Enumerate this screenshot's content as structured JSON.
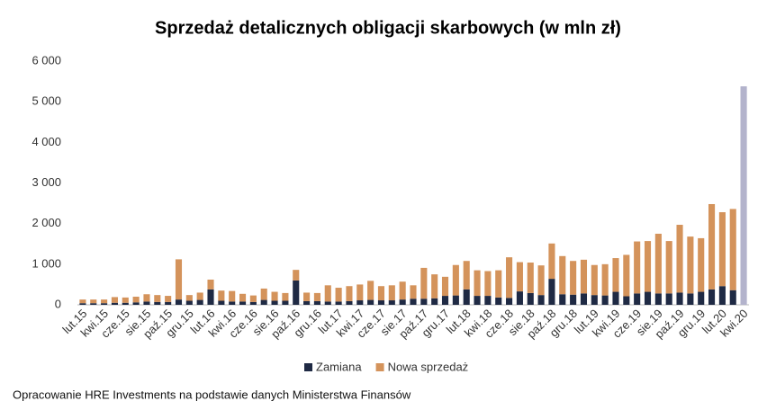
{
  "chart_data": {
    "type": "stacked_bar",
    "title": "Sprzedaż detalicznych obligacji skarbowych (w mln zł)",
    "source": "Opracowanie HRE Investments na podstawie danych Ministerstwa Finansów",
    "categories": [
      "lut.15",
      null,
      "kwi.15",
      null,
      "cze.15",
      null,
      "sie.15",
      null,
      "paź.15",
      null,
      "gru.15",
      null,
      "lut.16",
      null,
      "kwi.16",
      null,
      "cze.16",
      null,
      "sie.16",
      null,
      "paź.16",
      null,
      "gru.16",
      null,
      "lut.17",
      null,
      "kwi.17",
      null,
      "cze.17",
      null,
      "sie.17",
      null,
      "paź.17",
      null,
      "gru.17",
      null,
      "lut.18",
      null,
      "kwi.18",
      null,
      "cze.18",
      null,
      "sie.18",
      null,
      "paź.18",
      null,
      "gru.18",
      null,
      "lut.19",
      null,
      "kwi.19",
      null,
      "cze.19",
      null,
      "sie.19",
      null,
      "paź.19",
      null,
      "gru.19",
      null,
      "lut.20",
      null,
      "kwi.20"
    ],
    "series": [
      {
        "name": "Zamiana",
        "color": "#1f2a44",
        "values": [
          40,
          40,
          40,
          50,
          50,
          60,
          80,
          70,
          70,
          130,
          100,
          120,
          380,
          100,
          80,
          80,
          70,
          120,
          100,
          100,
          600,
          90,
          90,
          80,
          80,
          90,
          110,
          120,
          110,
          110,
          130,
          150,
          150,
          160,
          220,
          230,
          380,
          220,
          220,
          180,
          170,
          330,
          290,
          240,
          640,
          260,
          250,
          280,
          240,
          230,
          320,
          210,
          280,
          320,
          280,
          280,
          300,
          280,
          320,
          380,
          460,
          360,
          0
        ]
      },
      {
        "name": "Nowa sprzedaż",
        "color": "#d4935b",
        "colors": [
          "#d4935b",
          "#d4935b",
          "#d4935b",
          "#d4935b",
          "#d4935b",
          "#d4935b",
          "#d4935b",
          "#d4935b",
          "#d4935b",
          "#d4935b",
          "#d4935b",
          "#d4935b",
          "#d4935b",
          "#d4935b",
          "#d4935b",
          "#d4935b",
          "#d4935b",
          "#d4935b",
          "#d4935b",
          "#d4935b",
          "#d4935b",
          "#d4935b",
          "#d4935b",
          "#d4935b",
          "#d4935b",
          "#d4935b",
          "#d4935b",
          "#d4935b",
          "#d4935b",
          "#d4935b",
          "#d4935b",
          "#d4935b",
          "#d4935b",
          "#d4935b",
          "#d4935b",
          "#d4935b",
          "#d4935b",
          "#d4935b",
          "#d4935b",
          "#d4935b",
          "#d4935b",
          "#d4935b",
          "#d4935b",
          "#d4935b",
          "#d4935b",
          "#d4935b",
          "#d4935b",
          "#d4935b",
          "#d4935b",
          "#d4935b",
          "#d4935b",
          "#d4935b",
          "#d4935b",
          "#d4935b",
          "#d4935b",
          "#d4935b",
          "#d4935b",
          "#d4935b",
          "#d4935b",
          "#d4935b",
          "#d4935b",
          "#d4935b",
          "#b3b3cc"
        ],
        "values": [
          90,
          90,
          90,
          140,
          130,
          140,
          180,
          170,
          150,
          990,
          140,
          180,
          240,
          250,
          260,
          190,
          160,
          280,
          220,
          190,
          260,
          210,
          200,
          400,
          340,
          370,
          390,
          470,
          350,
          370,
          440,
          330,
          760,
          590,
          470,
          750,
          700,
          630,
          610,
          670,
          1000,
          720,
          750,
          730,
          870,
          940,
          830,
          830,
          740,
          770,
          830,
          1020,
          1280,
          1250,
          1470,
          1290,
          1670,
          1400,
          1320,
          2100,
          1820,
          2000,
          5380
        ]
      }
    ],
    "ylim": [
      0,
      6000
    ],
    "yticks": [
      0,
      {
        "value": 1000,
        "label": "1 000"
      },
      {
        "value": 2000,
        "label": "2 000"
      },
      {
        "value": 3000,
        "label": "3 000"
      },
      {
        "value": 4000,
        "label": "4 000"
      },
      {
        "value": 5000,
        "label": "5 000"
      },
      {
        "value": 6000,
        "label": "6 000"
      }
    ],
    "grid": false
  }
}
